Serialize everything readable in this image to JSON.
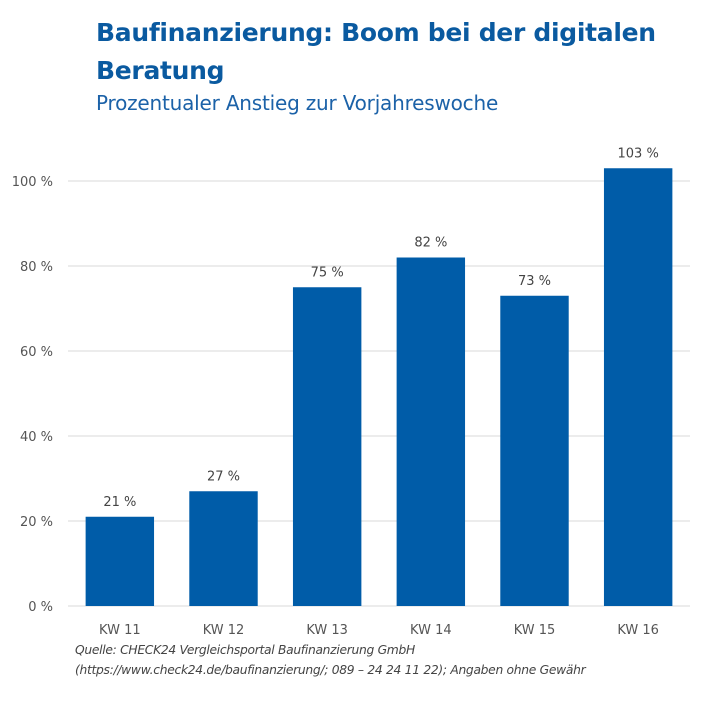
{
  "chart_data": {
    "type": "bar",
    "title": "Baufinanzierung: Boom bei der digitalen Beratung",
    "subtitle": "Prozentualer Anstieg zur Vorjahreswoche",
    "xlabel": "",
    "ylabel": "",
    "categories": [
      "KW 11",
      "KW 12",
      "KW 13",
      "KW 14",
      "KW 15",
      "KW 16"
    ],
    "values": [
      21,
      27,
      75,
      82,
      73,
      103
    ],
    "data_labels": [
      "21 %",
      "27 %",
      "75 %",
      "82 %",
      "73 %",
      "103 %"
    ],
    "ylim": [
      0,
      100
    ],
    "yticks": [
      0,
      20,
      40,
      60,
      80,
      100
    ],
    "ytick_labels": [
      "0 %",
      "20 %",
      "40 %",
      "60 %",
      "80 %",
      "100 %"
    ],
    "grid": true,
    "legend": "none",
    "bar_color": "#005ca8"
  },
  "header": {
    "title": "Baufinanzierung: Boom bei der digitalen Beratung",
    "subtitle": "Prozentualer Anstieg zur Vorjahreswoche"
  },
  "source": {
    "line1": "Quelle: CHECK24 Vergleichsportal Baufinanzierung GmbH",
    "line2": "(https://www.check24.de/baufinanzierung/; 089 – 24 24 11 22); Angaben ohne Gewähr"
  }
}
